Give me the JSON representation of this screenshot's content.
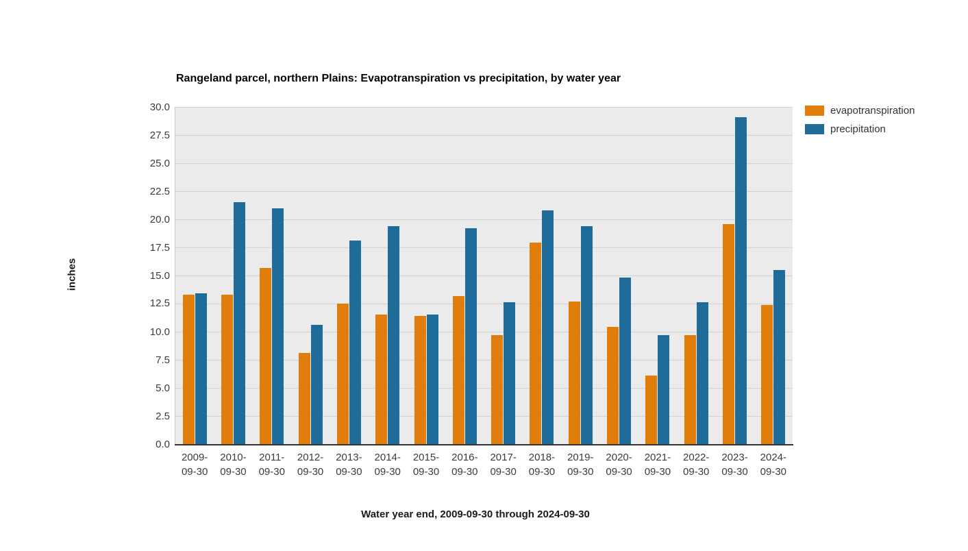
{
  "chart_data": {
    "type": "bar",
    "title": "Rangeland parcel, northern Plains: Evapotranspiration vs precipitation, by water year",
    "xlabel": "Water year end, 2009-09-30 through 2024-09-30",
    "ylabel": "inches",
    "categories": [
      "2009-09-30",
      "2010-09-30",
      "2011-09-30",
      "2012-09-30",
      "2013-09-30",
      "2014-09-30",
      "2015-09-30",
      "2016-09-30",
      "2017-09-30",
      "2018-09-30",
      "2019-09-30",
      "2020-09-30",
      "2021-09-30",
      "2022-09-30",
      "2023-09-30",
      "2024-09-30"
    ],
    "series": [
      {
        "name": "evapotranspiration",
        "color": "#E17D0B",
        "values": [
          13.3,
          13.3,
          15.7,
          8.1,
          12.5,
          11.5,
          11.4,
          13.2,
          9.7,
          17.9,
          12.7,
          10.4,
          6.1,
          9.7,
          19.6,
          12.4
        ]
      },
      {
        "name": "precipitation",
        "color": "#1F6B99",
        "values": [
          13.4,
          21.5,
          21.0,
          10.6,
          18.1,
          19.4,
          11.5,
          19.2,
          12.6,
          20.8,
          19.4,
          14.8,
          9.7,
          12.6,
          29.1,
          15.5
        ]
      }
    ],
    "ylim": [
      0,
      30
    ],
    "yticks": [
      "0.0",
      "2.5",
      "5.0",
      "7.5",
      "10.0",
      "12.5",
      "15.0",
      "17.5",
      "20.0",
      "22.5",
      "25.0",
      "27.5",
      "30.0"
    ],
    "grid": true,
    "legend_position": "right",
    "colors": {
      "plot_background": "#EBEBEB",
      "gridline": "#D2D2D2",
      "axis_line": "#333333",
      "tick_text": "#3B3B3B"
    }
  }
}
